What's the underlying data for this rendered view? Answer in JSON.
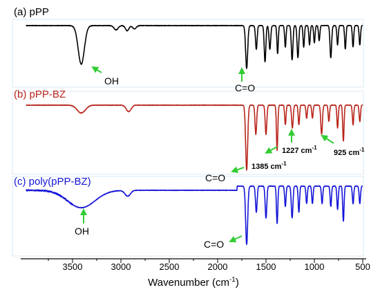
{
  "chart_data": {
    "type": "line",
    "xlabel": "Wavenumber (cm",
    "xlabel_sup": "-1",
    "xlabel_close": ")",
    "xlim": [
      4000,
      500
    ],
    "x_reversed": true,
    "x_ticks": [
      3500,
      3000,
      2500,
      2000,
      1500,
      1000,
      500
    ],
    "y_axis": "none (stacked transmittance spectra, arbitrary offset)",
    "series": [
      {
        "name": "(a) pPP",
        "color": "#000000",
        "baseline": "top",
        "dips": [
          {
            "x": 3410,
            "depth": 0.9,
            "width": 45
          },
          {
            "x": 3050,
            "depth": 0.1,
            "width": 30
          },
          {
            "x": 2935,
            "depth": 0.12,
            "width": 25
          },
          {
            "x": 2860,
            "depth": 0.08,
            "width": 25
          },
          {
            "x": 1700,
            "depth": 1.0,
            "width": 15
          },
          {
            "x": 1600,
            "depth": 0.55,
            "width": 12
          },
          {
            "x": 1510,
            "depth": 0.85,
            "width": 12
          },
          {
            "x": 1460,
            "depth": 0.55,
            "width": 12
          },
          {
            "x": 1380,
            "depth": 0.65,
            "width": 10
          },
          {
            "x": 1300,
            "depth": 0.5,
            "width": 10
          },
          {
            "x": 1230,
            "depth": 0.8,
            "width": 12
          },
          {
            "x": 1170,
            "depth": 0.75,
            "width": 12
          },
          {
            "x": 1110,
            "depth": 0.5,
            "width": 10
          },
          {
            "x": 1050,
            "depth": 0.45,
            "width": 10
          },
          {
            "x": 1000,
            "depth": 0.4,
            "width": 10
          },
          {
            "x": 950,
            "depth": 0.35,
            "width": 10
          },
          {
            "x": 830,
            "depth": 0.75,
            "width": 12
          },
          {
            "x": 760,
            "depth": 0.45,
            "width": 10
          },
          {
            "x": 680,
            "depth": 0.55,
            "width": 10
          },
          {
            "x": 600,
            "depth": 0.5,
            "width": 10
          },
          {
            "x": 530,
            "depth": 0.45,
            "width": 10
          }
        ]
      },
      {
        "name": "(b) pPP-BZ",
        "color": "#b8241a",
        "baseline": "middle",
        "dips": [
          {
            "x": 3410,
            "depth": 0.12,
            "width": 60
          },
          {
            "x": 2920,
            "depth": 0.1,
            "width": 35
          },
          {
            "x": 1700,
            "depth": 1.0,
            "width": 15
          },
          {
            "x": 1605,
            "depth": 0.45,
            "width": 12
          },
          {
            "x": 1500,
            "depth": 0.45,
            "width": 12
          },
          {
            "x": 1385,
            "depth": 0.7,
            "width": 10
          },
          {
            "x": 1300,
            "depth": 0.3,
            "width": 10
          },
          {
            "x": 1227,
            "depth": 0.35,
            "width": 12
          },
          {
            "x": 1160,
            "depth": 0.3,
            "width": 10
          },
          {
            "x": 1080,
            "depth": 0.2,
            "width": 10
          },
          {
            "x": 1020,
            "depth": 0.2,
            "width": 10
          },
          {
            "x": 925,
            "depth": 0.45,
            "width": 12
          },
          {
            "x": 850,
            "depth": 0.25,
            "width": 10
          },
          {
            "x": 760,
            "depth": 0.35,
            "width": 10
          },
          {
            "x": 700,
            "depth": 0.55,
            "width": 10
          },
          {
            "x": 600,
            "depth": 0.3,
            "width": 10
          },
          {
            "x": 530,
            "depth": 0.25,
            "width": 10
          }
        ]
      },
      {
        "name": "(c) poly(pPP-BZ)",
        "color": "#1414d8",
        "baseline": "bottom",
        "dips": [
          {
            "x": 3410,
            "depth": 0.3,
            "width": 200
          },
          {
            "x": 2930,
            "depth": 0.1,
            "width": 40
          },
          {
            "x": 1700,
            "depth": 1.0,
            "width": 15
          },
          {
            "x": 1600,
            "depth": 0.45,
            "width": 12
          },
          {
            "x": 1500,
            "depth": 0.55,
            "width": 12
          },
          {
            "x": 1385,
            "depth": 0.65,
            "width": 10
          },
          {
            "x": 1300,
            "depth": 0.35,
            "width": 10
          },
          {
            "x": 1230,
            "depth": 0.55,
            "width": 12
          },
          {
            "x": 1160,
            "depth": 0.45,
            "width": 10
          },
          {
            "x": 1080,
            "depth": 0.3,
            "width": 10
          },
          {
            "x": 1020,
            "depth": 0.3,
            "width": 10
          },
          {
            "x": 920,
            "depth": 0.3,
            "width": 10
          },
          {
            "x": 830,
            "depth": 0.35,
            "width": 10
          },
          {
            "x": 760,
            "depth": 0.4,
            "width": 10
          },
          {
            "x": 700,
            "depth": 0.6,
            "width": 10
          },
          {
            "x": 600,
            "depth": 0.3,
            "width": 10
          },
          {
            "x": 530,
            "depth": 0.3,
            "width": 10
          }
        ]
      }
    ],
    "annotations": [
      {
        "series": 0,
        "x": 3410,
        "text": "OH"
      },
      {
        "series": 0,
        "x": 1700,
        "text": "C=O"
      },
      {
        "series": 1,
        "x": 1700,
        "text": "C=O"
      },
      {
        "series": 1,
        "x": 1385,
        "text": "1385 cm",
        "sup": "-1"
      },
      {
        "series": 1,
        "x": 1227,
        "text": "1227 cm",
        "sup": "-1"
      },
      {
        "series": 1,
        "x": 925,
        "text": "925 cm",
        "sup": "-1"
      },
      {
        "series": 2,
        "x": 3410,
        "text": "OH"
      },
      {
        "series": 2,
        "x": 1700,
        "text": "C=O"
      }
    ]
  },
  "colors": {
    "axis": "#000000",
    "arrow": "#33cc33",
    "frame": "#cfe3f3"
  }
}
